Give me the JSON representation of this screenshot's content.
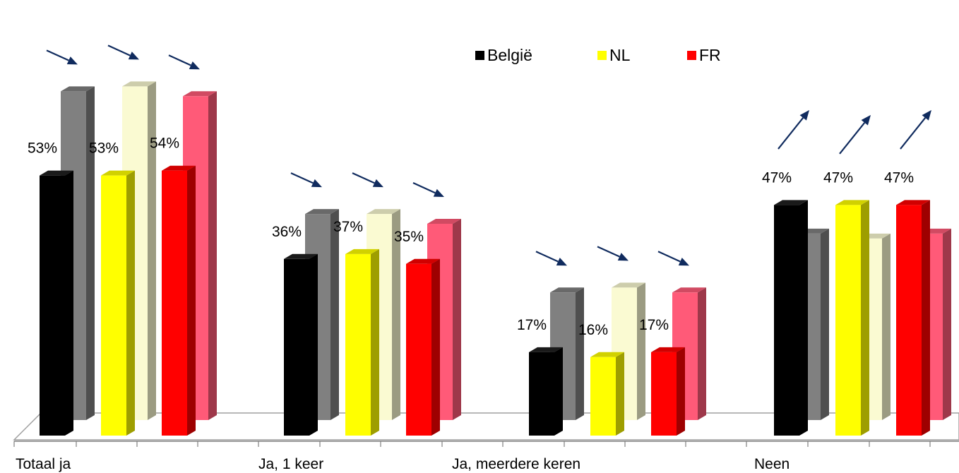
{
  "chart_data": {
    "type": "bar",
    "categories": [
      "Totaal ja",
      "Ja, 1 keer",
      "Ja, meerdere keren",
      "Neen"
    ],
    "series": [
      {
        "name": "België",
        "values": [
          53,
          36,
          17,
          47
        ],
        "color": "#000000"
      },
      {
        "name": "NL",
        "values": [
          53,
          37,
          16,
          47
        ],
        "color": "#ffff00"
      },
      {
        "name": "FR",
        "values": [
          54,
          35,
          17,
          47
        ],
        "color": "#ff0000"
      }
    ],
    "comparison_series": [
      {
        "values": [
          67,
          42,
          26,
          38
        ],
        "color": "#808080"
      },
      {
        "values": [
          68,
          42,
          27,
          37
        ],
        "color": "#fafad2"
      },
      {
        "values": [
          66,
          40,
          26,
          38
        ],
        "color": "#ff5a78"
      }
    ],
    "data_labels": [
      [
        "53%",
        "36%",
        "17%",
        "47%"
      ],
      [
        "53%",
        "37%",
        "16%",
        "47%"
      ],
      [
        "54%",
        "35%",
        "17%",
        "47%"
      ]
    ],
    "trend_arrows": [
      [
        "down",
        "down",
        "down",
        "up"
      ],
      [
        "down",
        "down",
        "down",
        "up"
      ],
      [
        "down",
        "down",
        "down",
        "up"
      ]
    ],
    "arrow_color": "#102b5e",
    "ylim": [
      0,
      75
    ],
    "legend_position": "top-right",
    "style": "3d-clustered-column",
    "grid": false
  }
}
